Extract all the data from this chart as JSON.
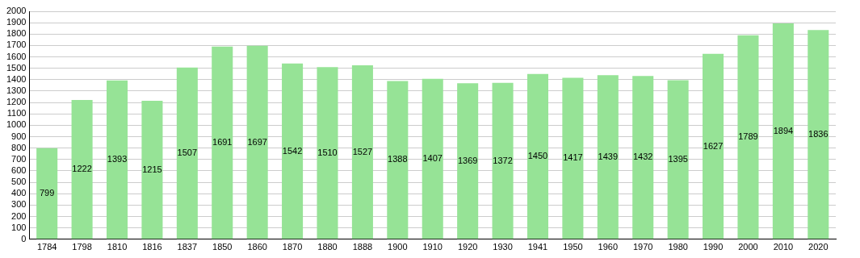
{
  "chart_data": {
    "type": "bar",
    "categories": [
      "1784",
      "1798",
      "1810",
      "1816",
      "1837",
      "1850",
      "1860",
      "1870",
      "1880",
      "1888",
      "1900",
      "1910",
      "1920",
      "1930",
      "1941",
      "1950",
      "1960",
      "1970",
      "1980",
      "1990",
      "2000",
      "2010",
      "2020"
    ],
    "values": [
      799,
      1222,
      1393,
      1215,
      1507,
      1691,
      1697,
      1542,
      1510,
      1527,
      1388,
      1407,
      1369,
      1372,
      1450,
      1417,
      1439,
      1432,
      1395,
      1627,
      1789,
      1894,
      1836
    ],
    "color": "#96e396",
    "ylim": [
      0,
      2000
    ],
    "yticks": [
      0,
      100,
      200,
      300,
      400,
      500,
      600,
      700,
      800,
      900,
      1000,
      1100,
      1200,
      1300,
      1400,
      1500,
      1600,
      1700,
      1800,
      1900,
      2000
    ],
    "grid": "y",
    "data_labels": true
  }
}
